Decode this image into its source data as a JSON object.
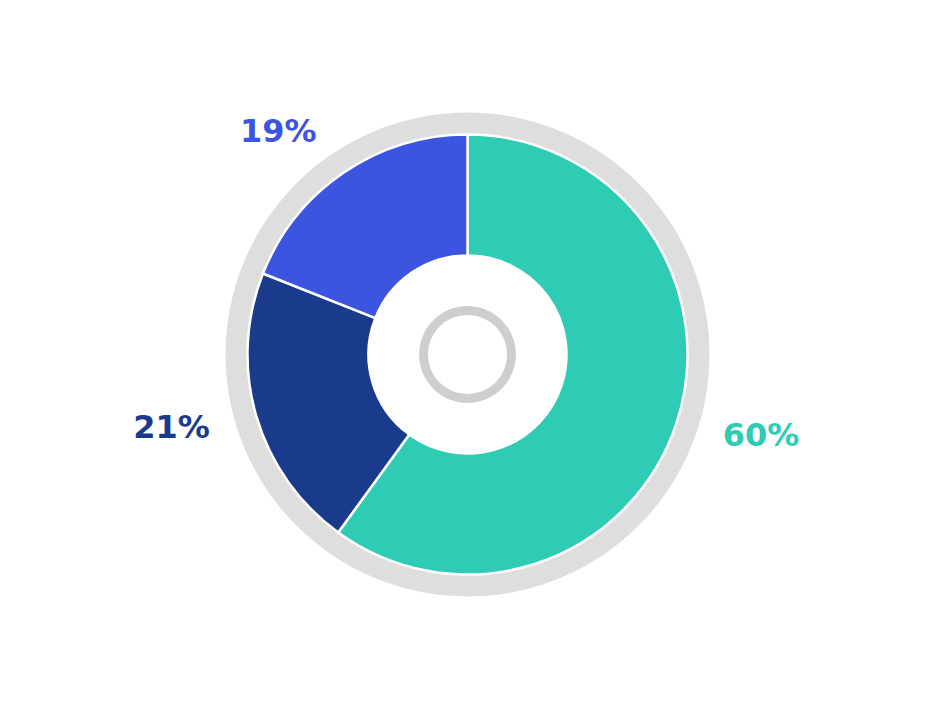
{
  "chart_data": {
    "type": "pie",
    "values": [
      60,
      21,
      19
    ],
    "value_labels": [
      "60%",
      "21%",
      "19%"
    ],
    "colors": [
      "#2ECBB5",
      "#1A3A8C",
      "#3B55E0"
    ],
    "data_labels": true
  }
}
